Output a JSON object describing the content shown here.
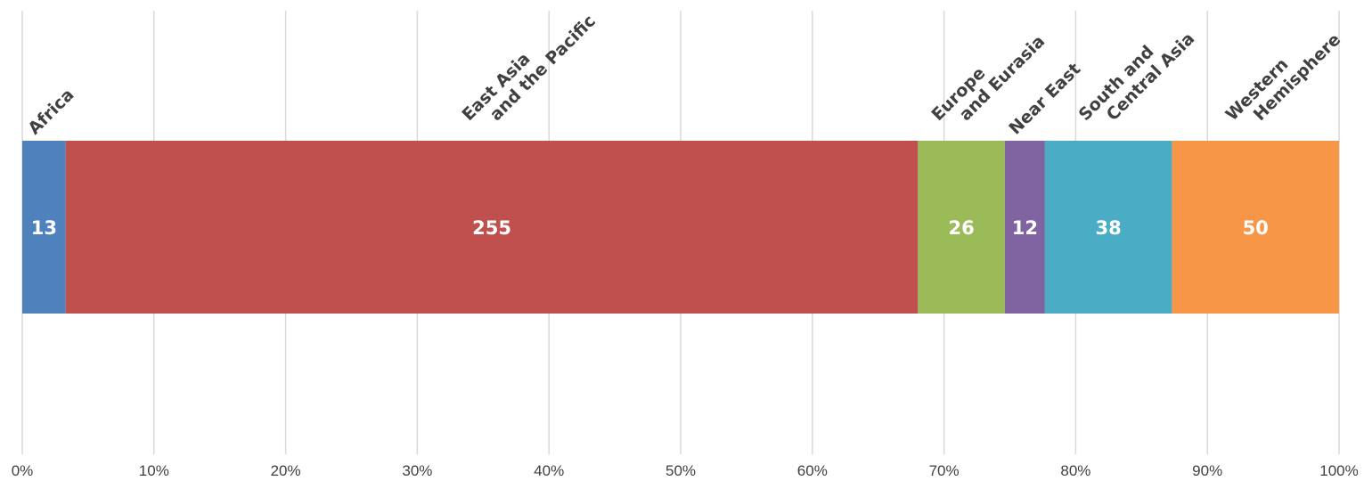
{
  "chart_data": {
    "type": "bar",
    "orientation": "horizontal",
    "stacking": "percent",
    "categories": [
      "Africa",
      "East Asia and the Pacific",
      "Europe and Eurasia",
      "Near East",
      "South and Central Asia",
      "Western Hemisphere"
    ],
    "category_label_lines": [
      [
        "Africa"
      ],
      [
        "East Asia",
        "and the Pacific"
      ],
      [
        "Europe",
        "and Eurasia"
      ],
      [
        "Near East"
      ],
      [
        "South and",
        "Central Asia"
      ],
      [
        "Western",
        "Hemisphere"
      ]
    ],
    "values": [
      13,
      255,
      26,
      12,
      38,
      50
    ],
    "colors": [
      "#4f81bd",
      "#c0504d",
      "#9bbb59",
      "#8064a2",
      "#4bacc6",
      "#f79646"
    ],
    "x_ticks": [
      "0%",
      "10%",
      "20%",
      "30%",
      "40%",
      "50%",
      "60%",
      "70%",
      "80%",
      "90%",
      "100%"
    ],
    "xlim": [
      0,
      100
    ],
    "grid": true,
    "legend": "none",
    "title": "",
    "xlabel": "",
    "ylabel": ""
  }
}
